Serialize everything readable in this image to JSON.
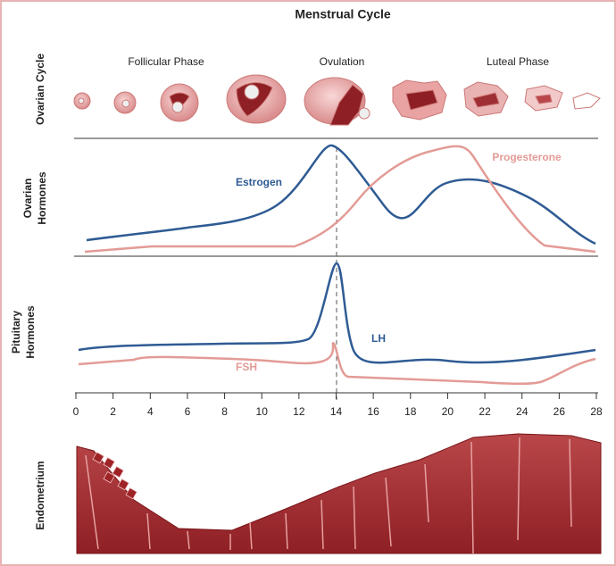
{
  "title": "Menstrual Cycle",
  "panels": {
    "ovarian_cycle": "Ovarian Cycle",
    "ovarian_hormones": [
      "Ovarian",
      "Hormones"
    ],
    "pituitary_hormones": [
      "Pituitary",
      "Hormones"
    ],
    "endometrium": "Endometrium"
  },
  "phases": [
    "Follicular Phase",
    "Ovulation",
    "Luteal Phase"
  ],
  "curves": {
    "estrogen": "Estrogen",
    "progesterone": "Progesterone",
    "lh": "LH",
    "fsh": "FSH"
  },
  "axis": {
    "ticks": [
      0,
      2,
      4,
      6,
      8,
      10,
      12,
      14,
      16,
      18,
      20,
      22,
      24,
      26,
      28
    ]
  }
}
